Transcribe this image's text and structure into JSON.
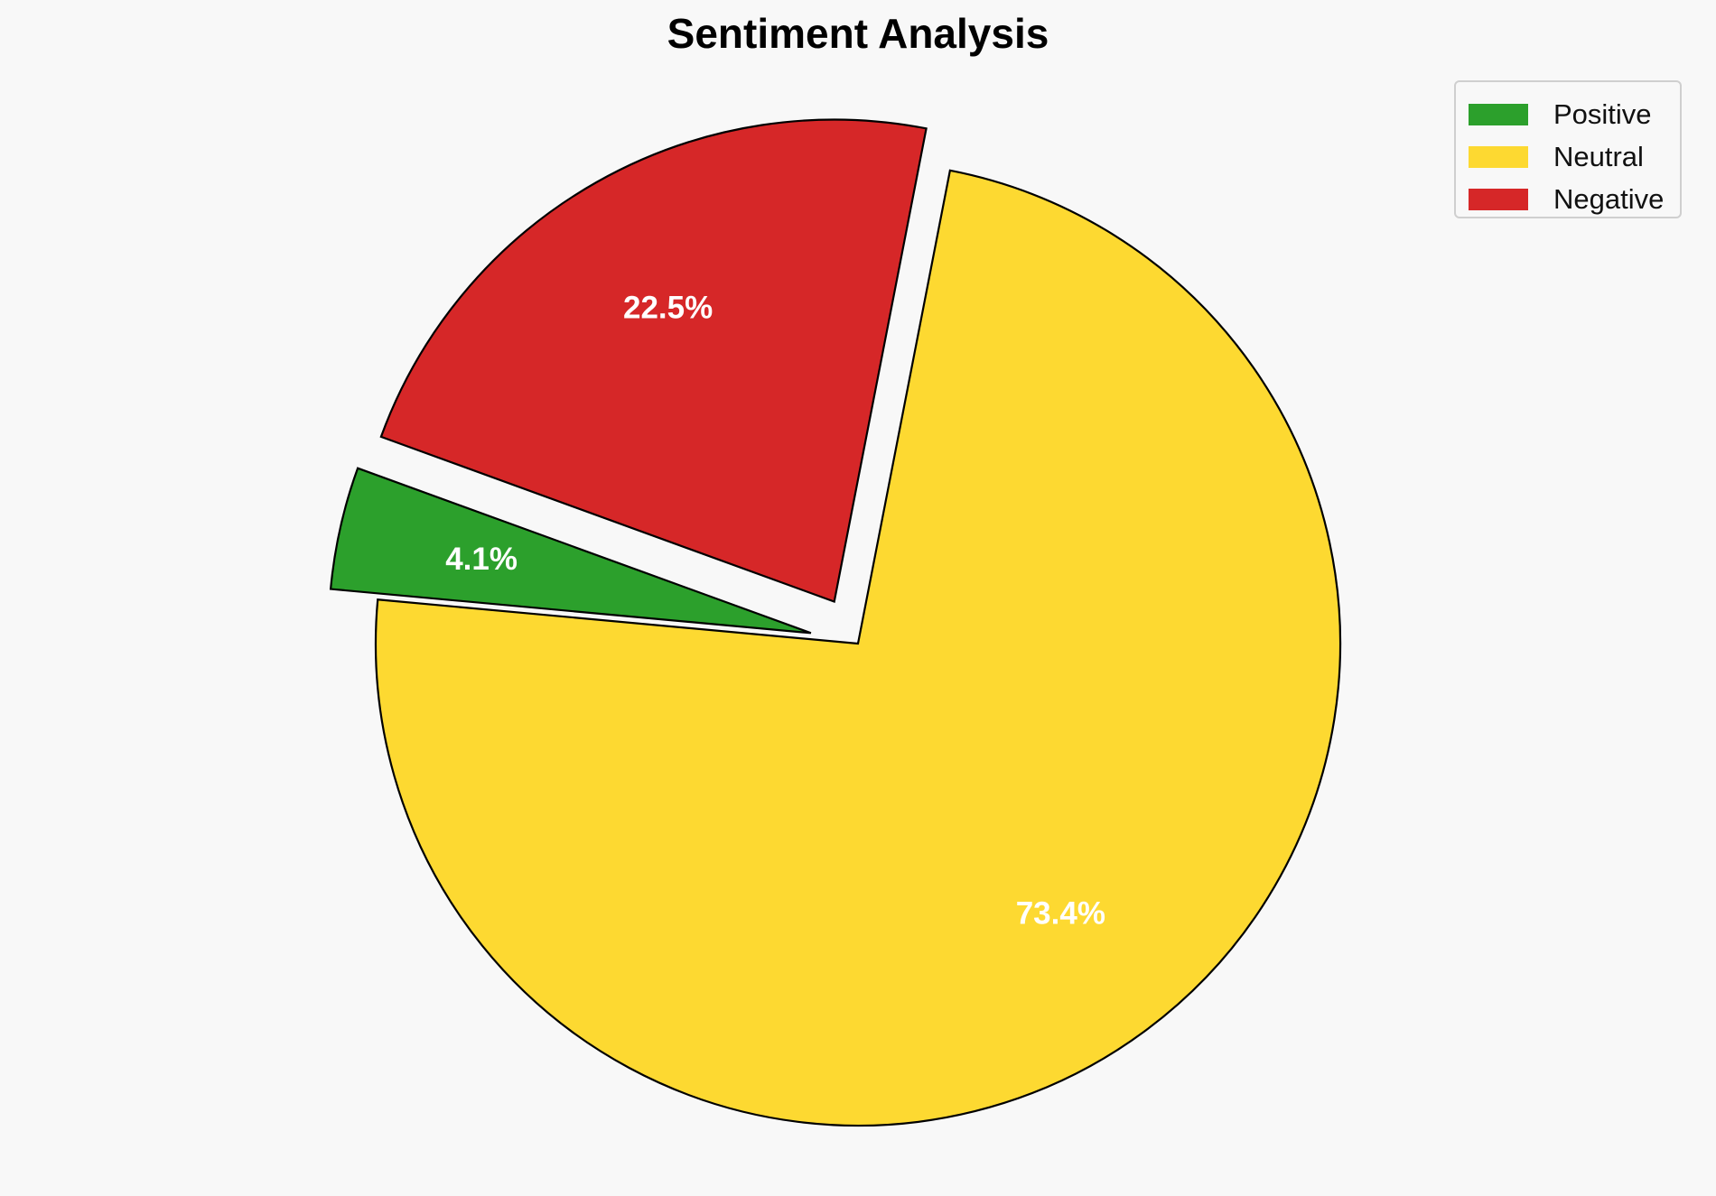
{
  "chart_data": {
    "type": "pie",
    "title": "Sentiment Analysis",
    "start_angle_deg": 160,
    "direction": "counterclockwise",
    "slices": [
      {
        "name": "Positive",
        "value": 4.1,
        "label": "4.1%",
        "color": "#2ca02c",
        "exploded": true
      },
      {
        "name": "Neutral",
        "value": 73.4,
        "label": "73.4%",
        "color": "#fdd931",
        "exploded": false
      },
      {
        "name": "Negative",
        "value": 22.5,
        "label": "22.5%",
        "color": "#d62728",
        "exploded": true
      }
    ],
    "legend_position": "top-right",
    "edge_color": "#000000",
    "background": "#f8f8f8"
  }
}
